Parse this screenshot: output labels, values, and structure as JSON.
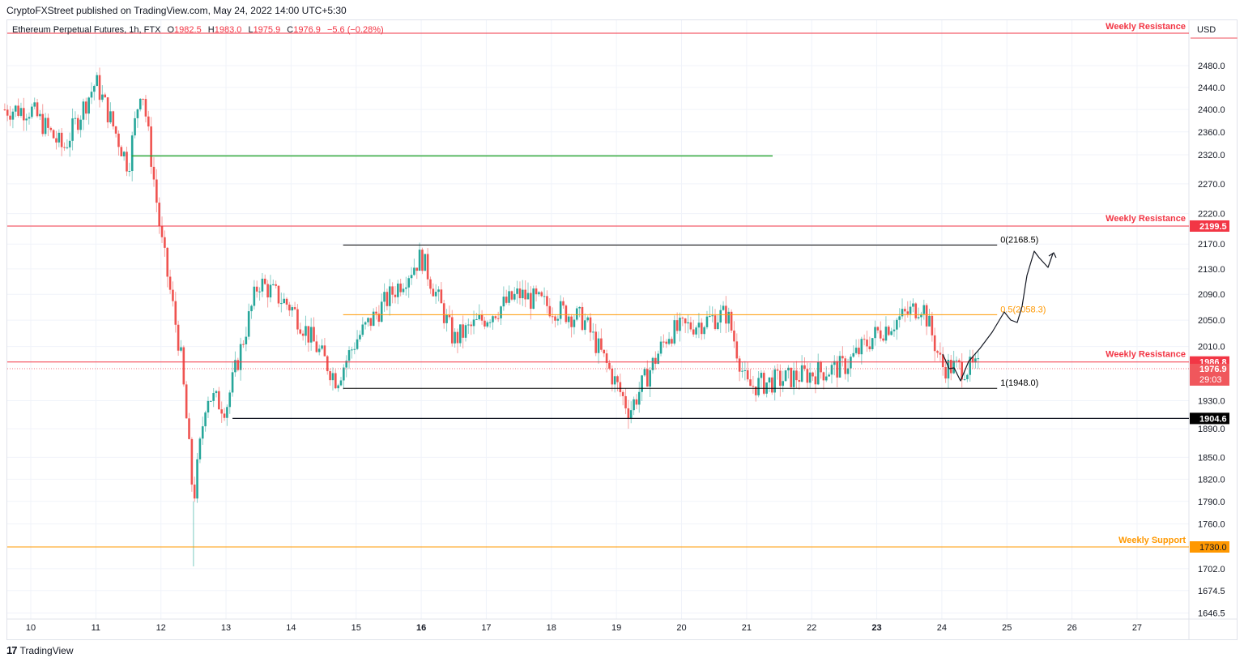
{
  "header": {
    "published": "CryptoFXStreet published on TradingView.com, May 24, 2022 14:00 UTC+5:30"
  },
  "legend": {
    "symbol": "Ethereum Perpetual Futures, 1h, FTX",
    "o_label": "O",
    "o": "1982.5",
    "h_label": "H",
    "h": "1983.0",
    "l_label": "L",
    "l": "1975.9",
    "c_label": "C",
    "c": "1976.9",
    "change": "−5.6 (−0.28%)"
  },
  "footer": {
    "brand": "TradingView",
    "logo": "17"
  },
  "colors": {
    "up": "#26a69a",
    "down": "#ef5350",
    "resistance": "#f23645",
    "support": "#ff9800",
    "fib": "#000000",
    "green_line": "#089981"
  },
  "chart_data": {
    "type": "candlestick",
    "title": "Ethereum Perpetual Futures, 1h, FTX",
    "currency": "USD",
    "xlabel": "",
    "ylabel": "USD",
    "x_ticks": [
      "10",
      "11",
      "12",
      "13",
      "14",
      "15",
      "16",
      "17",
      "18",
      "19",
      "20",
      "21",
      "22",
      "23",
      "24",
      "25",
      "26",
      "27"
    ],
    "x_bold_ticks": [
      "16",
      "23"
    ],
    "y_ticks": [
      2480.0,
      2440.0,
      2400.0,
      2360.0,
      2320.0,
      2270.0,
      2220.0,
      2170.0,
      2130.0,
      2090.0,
      2050.0,
      2010.0,
      1930.0,
      1890.0,
      1850.0,
      1820.0,
      1790.0,
      1760.0,
      1702.0,
      1674.5,
      1646.5
    ],
    "ylim": [
      1640,
      2530
    ],
    "scale": "log",
    "ohlc_last": {
      "open": 1982.5,
      "high": 1983.0,
      "low": 1975.9,
      "close": 1976.9,
      "change": -5.6,
      "change_pct": -0.28
    },
    "price_path_approx": [
      {
        "day": "10",
        "close": 2400
      },
      {
        "day": "10.5",
        "close": 2330
      },
      {
        "day": "11",
        "close": 2450
      },
      {
        "day": "11.5",
        "close": 2300
      },
      {
        "day": "11.7",
        "close": 2450
      },
      {
        "day": "12",
        "close": 2180
      },
      {
        "day": "12.3",
        "close": 2000
      },
      {
        "day": "12.5",
        "close": 1790
      },
      {
        "day": "12.7",
        "close": 1940
      },
      {
        "day": "13",
        "close": 1920
      },
      {
        "day": "13.5",
        "close": 2110
      },
      {
        "day": "14",
        "close": 2070
      },
      {
        "day": "14.7",
        "close": 1960
      },
      {
        "day": "15",
        "close": 2020
      },
      {
        "day": "16",
        "close": 2150
      },
      {
        "day": "16.5",
        "close": 2020
      },
      {
        "day": "17.5",
        "close": 2090
      },
      {
        "day": "18.5",
        "close": 2050
      },
      {
        "day": "19.2",
        "close": 1915
      },
      {
        "day": "19.8",
        "close": 2030
      },
      {
        "day": "20.7",
        "close": 2060
      },
      {
        "day": "21",
        "close": 1950
      },
      {
        "day": "22.5",
        "close": 1980
      },
      {
        "day": "23",
        "close": 2030
      },
      {
        "day": "23.7",
        "close": 2075
      },
      {
        "day": "24",
        "close": 1980
      },
      {
        "day": "24.5",
        "close": 1976.9
      }
    ],
    "horizontal_lines": [
      {
        "label": "Weekly Resistance",
        "price": 2530,
        "color": "#f23645",
        "badge": ""
      },
      {
        "label": "Weekly Resistance",
        "price": 2199.5,
        "color": "#f23645",
        "badge": "2199.5"
      },
      {
        "label": "Weekly Resistance",
        "price": 1986.8,
        "color": "#f23645",
        "badge": "1986.8"
      },
      {
        "label": "Weekly Support",
        "price": 1730.0,
        "color": "#ff9800",
        "badge": "1730.0"
      },
      {
        "label": "",
        "price": 1904.6,
        "color": "#000000",
        "badge": "1904.6"
      },
      {
        "label": "",
        "price": 2318,
        "color": "#089981",
        "badge": ""
      }
    ],
    "fibonacci": [
      {
        "level": "0",
        "price": 2168.5,
        "label": "0(2168.5)",
        "color": "#000000"
      },
      {
        "level": "0.5",
        "price": 2058.3,
        "label": "0.5(2058.3)",
        "color": "#ff9800"
      },
      {
        "level": "1",
        "price": 1948.0,
        "label": "1(1948.0)",
        "color": "#000000"
      }
    ],
    "current_price": {
      "value": "1976.9",
      "countdown": "29:03"
    },
    "annotations": [
      "Projected path: dip to ~1950, rally to 0.5 fib (2058), pullback, then up to ~2168 with arrow"
    ]
  }
}
